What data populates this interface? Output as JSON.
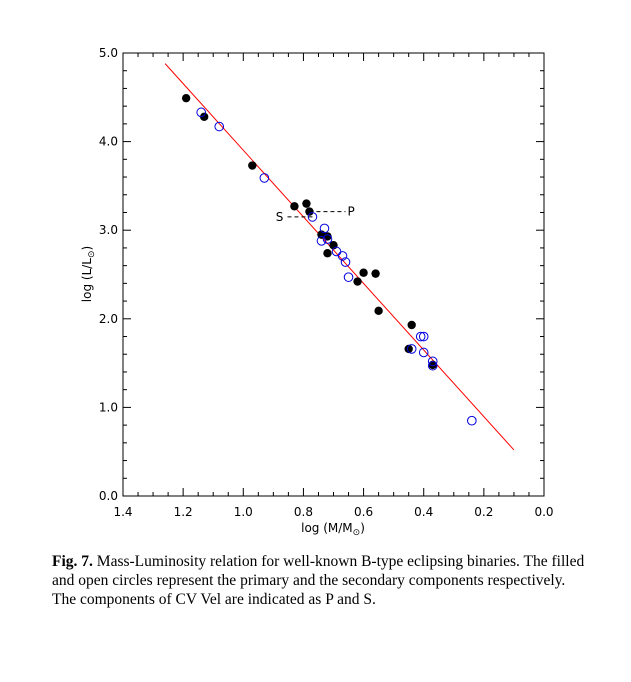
{
  "chart_data": {
    "type": "scatter",
    "xlabel_text": "log (M/M",
    "xlabel_sub": "⊙",
    "xlabel_close": ")",
    "ylabel_text": "log (L/L",
    "ylabel_sub": "⊙",
    "ylabel_close": ")",
    "xlim": [
      1.4,
      0.0
    ],
    "ylim": [
      0.0,
      5.0
    ],
    "x_ticks": [
      "1.4",
      "1.2",
      "1.0",
      "0.8",
      "0.6",
      "0.4",
      "0.2",
      "0.0"
    ],
    "y_ticks": [
      "0.0",
      "1.0",
      "2.0",
      "3.0",
      "4.0",
      "5.0"
    ],
    "series": [
      {
        "marker": "filled",
        "color": "#000000",
        "points": [
          [
            1.19,
            4.49
          ],
          [
            1.13,
            4.28
          ],
          [
            0.97,
            3.73
          ],
          [
            0.83,
            3.27
          ],
          [
            0.79,
            3.3
          ],
          [
            0.78,
            3.21
          ],
          [
            0.74,
            2.95
          ],
          [
            0.72,
            2.93
          ],
          [
            0.72,
            2.74
          ],
          [
            0.7,
            2.83
          ],
          [
            0.62,
            2.42
          ],
          [
            0.6,
            2.52
          ],
          [
            0.56,
            2.51
          ],
          [
            0.55,
            2.09
          ],
          [
            0.44,
            1.93
          ],
          [
            0.45,
            1.66
          ],
          [
            0.37,
            1.48
          ]
        ]
      },
      {
        "marker": "open",
        "color": "#0000dd",
        "points": [
          [
            1.14,
            4.33
          ],
          [
            1.08,
            4.17
          ],
          [
            0.93,
            3.59
          ],
          [
            0.77,
            3.15
          ],
          [
            0.73,
            3.02
          ],
          [
            0.74,
            2.88
          ],
          [
            0.72,
            2.9
          ],
          [
            0.69,
            2.76
          ],
          [
            0.67,
            2.71
          ],
          [
            0.66,
            2.64
          ],
          [
            0.65,
            2.47
          ],
          [
            0.44,
            1.66
          ],
          [
            0.41,
            1.8
          ],
          [
            0.4,
            1.8
          ],
          [
            0.4,
            1.62
          ],
          [
            0.37,
            1.52
          ],
          [
            0.37,
            1.47
          ],
          [
            0.24,
            0.85
          ]
        ]
      }
    ],
    "fit_line": {
      "color": "#ff0000",
      "x": [
        1.26,
        0.1
      ],
      "y": [
        4.88,
        0.52
      ]
    },
    "annotations": [
      {
        "label": "P",
        "point": [
          0.78,
          3.21
        ],
        "end": [
          0.66,
          3.21
        ]
      },
      {
        "label": "S",
        "point": [
          0.77,
          3.15
        ],
        "end": [
          0.86,
          3.15
        ]
      }
    ]
  },
  "caption": {
    "label": "Fig. 7.",
    "text": " Mass-Luminosity relation for well-known B-type eclipsing binaries. The filled and open circles represent the primary and the secondary components respectively. The components of CV Vel are indicated as P and S."
  }
}
